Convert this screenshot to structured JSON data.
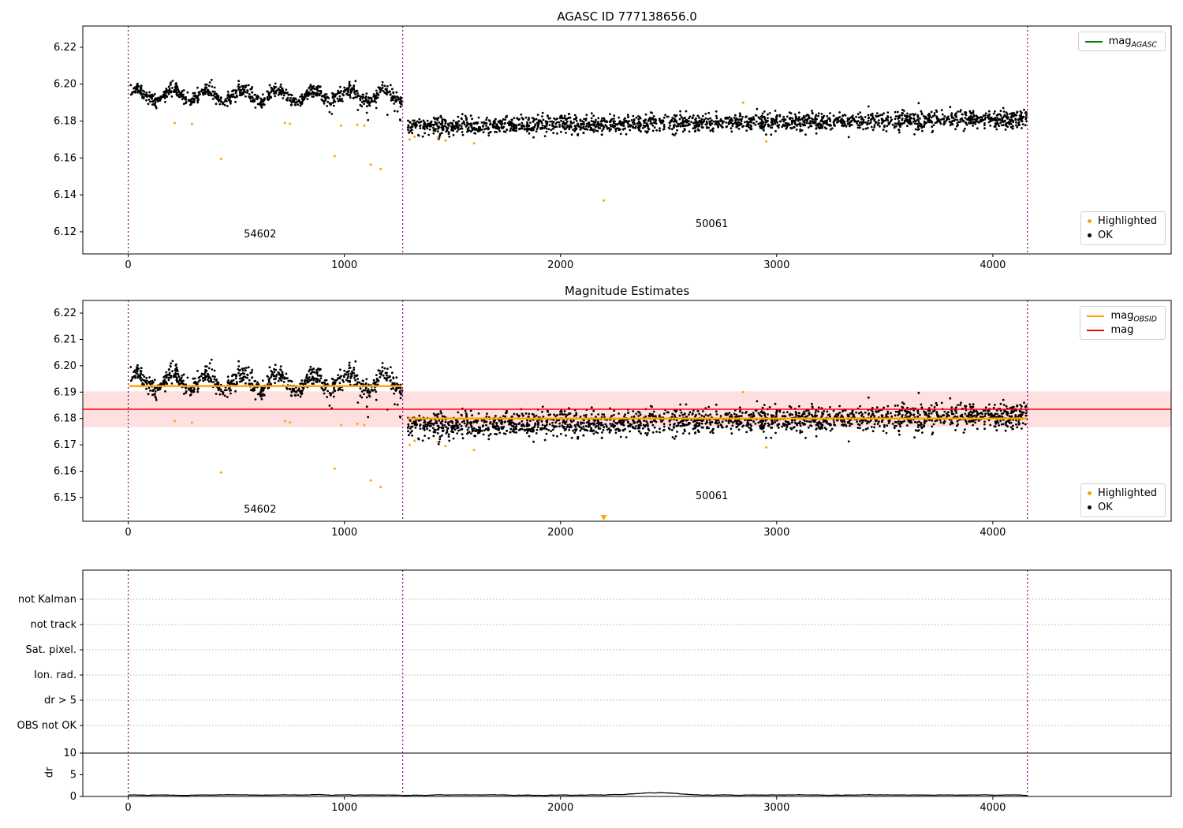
{
  "colors": {
    "ok": "#000000",
    "highlighted": "#ffa500",
    "mag_agasc_line": "#008000",
    "mag_obsid_line": "#ffa500",
    "mag_line": "#ff0000",
    "mag_band": "rgba(255,0,0,0.12)",
    "obsid_vline": "#800080",
    "grid": "#b0b0b0",
    "axis": "#000000"
  },
  "legends": {
    "p1_top": {
      "items": [
        {
          "label": "mag",
          "sub": "AGASC",
          "marker": "line",
          "color": "#008000"
        }
      ]
    },
    "p1_bottom": {
      "items": [
        {
          "label": "Highlighted",
          "sub": "",
          "marker": "dot",
          "color": "#ffa500"
        },
        {
          "label": "OK",
          "sub": "",
          "marker": "dot",
          "color": "#000000"
        }
      ]
    },
    "p2_top": {
      "items": [
        {
          "label": "mag",
          "sub": "OBSID",
          "marker": "line",
          "color": "#ffa500"
        },
        {
          "label": "mag",
          "sub": "",
          "marker": "line",
          "color": "#ff0000"
        }
      ]
    },
    "p2_bottom": {
      "items": [
        {
          "label": "Highlighted",
          "sub": "",
          "marker": "dot",
          "color": "#ffa500"
        },
        {
          "label": "OK",
          "sub": "",
          "marker": "dot",
          "color": "#000000"
        }
      ]
    }
  },
  "chart_data": [
    {
      "type": "scatter",
      "title": "AGASC ID 777138656.0",
      "xlim": [
        -210,
        4825
      ],
      "ylim": [
        6.108,
        6.2315
      ],
      "xticks": [
        0,
        1000,
        2000,
        3000,
        4000
      ],
      "yticks": [
        6.12,
        6.14,
        6.16,
        6.18,
        6.2,
        6.22
      ],
      "ytick_decimals": 2,
      "vlines": [
        0,
        1270,
        4160
      ],
      "obsid_labels": [
        {
          "text": "54602",
          "x": 610,
          "y": 6.117
        },
        {
          "text": "50061",
          "x": 2700,
          "y": 6.1225
        }
      ],
      "segments": [
        {
          "x0": 5,
          "x1": 1268,
          "n": 820,
          "mean": 6.1938,
          "sd": 0.002,
          "wave_amp": 0.0032,
          "wave_freq": 0.0385,
          "low_prob": 0.045,
          "low_max": 0.013,
          "low_start": 840
        },
        {
          "x0": 1292,
          "x1": 4158,
          "n": 1950,
          "mean": 6.1772,
          "sd": 0.0024,
          "slope": 1.4e-06,
          "low_prob": 0.012,
          "low_max": 0.008,
          "low_start": 1292
        }
      ],
      "highlighted": [
        [
          215,
          6.179
        ],
        [
          295,
          6.1785
        ],
        [
          430,
          6.1595
        ],
        [
          725,
          6.179
        ],
        [
          748,
          6.1785
        ],
        [
          955,
          6.161
        ],
        [
          985,
          6.1775
        ],
        [
          1060,
          6.178
        ],
        [
          1092,
          6.1775
        ],
        [
          1122,
          6.1565
        ],
        [
          1168,
          6.154
        ],
        [
          1302,
          6.17
        ],
        [
          1325,
          6.1715
        ],
        [
          1432,
          6.171
        ],
        [
          1468,
          6.1695
        ],
        [
          1600,
          6.168
        ],
        [
          2200,
          6.137
        ],
        [
          2845,
          6.19
        ],
        [
          2952,
          6.169
        ]
      ]
    },
    {
      "type": "scatter",
      "title": "Magnitude Estimates",
      "xlim": [
        -210,
        4825
      ],
      "ylim": [
        6.141,
        6.2248
      ],
      "xticks": [
        0,
        1000,
        2000,
        3000,
        4000
      ],
      "yticks": [
        6.15,
        6.16,
        6.17,
        6.18,
        6.19,
        6.2,
        6.21,
        6.22
      ],
      "ytick_decimals": 2,
      "vlines": [
        0,
        1270,
        4160
      ],
      "band": {
        "y0": 6.1767,
        "y1": 6.1903
      },
      "mag_line": {
        "y": 6.1835
      },
      "obsid_lines": [
        {
          "x0": 5,
          "x1": 1268,
          "y": 6.1923
        },
        {
          "x0": 1292,
          "x1": 4158,
          "y": 6.18
        }
      ],
      "obsid_labels": [
        {
          "text": "54602",
          "x": 610,
          "y": 6.1443
        },
        {
          "text": "50061",
          "x": 2700,
          "y": 6.1494
        }
      ],
      "clipped_low": [
        {
          "x": 2200
        }
      ],
      "highlighted": [
        [
          215,
          6.179
        ],
        [
          295,
          6.1785
        ],
        [
          430,
          6.1595
        ],
        [
          725,
          6.179
        ],
        [
          748,
          6.1785
        ],
        [
          955,
          6.161
        ],
        [
          985,
          6.1775
        ],
        [
          1060,
          6.178
        ],
        [
          1092,
          6.1775
        ],
        [
          1122,
          6.1565
        ],
        [
          1168,
          6.154
        ],
        [
          1302,
          6.17
        ],
        [
          1325,
          6.1715
        ],
        [
          1432,
          6.171
        ],
        [
          1468,
          6.1695
        ],
        [
          1600,
          6.168
        ],
        [
          2845,
          6.19
        ],
        [
          2952,
          6.169
        ]
      ]
    },
    {
      "type": "flags",
      "flags": [
        "not Kalman",
        "not track",
        "Sat. pixel.",
        "Ion. rad.",
        "dr > 5",
        "OBS not OK"
      ],
      "dr_axis": {
        "label": "dr",
        "ticks": [
          0,
          5,
          10
        ],
        "ref_line": 10
      },
      "xticks": [
        0,
        1000,
        2000,
        3000,
        4000
      ],
      "xlim": [
        -210,
        4825
      ],
      "vlines": [
        0,
        1270,
        4160
      ],
      "dr_series": {
        "x0": 0,
        "x1": 4160,
        "step": 8,
        "base": 0.32,
        "noise": 0.5,
        "smooth": 0.85,
        "bump": {
          "center": 2440,
          "width": 130,
          "height": 0.5
        }
      }
    }
  ]
}
